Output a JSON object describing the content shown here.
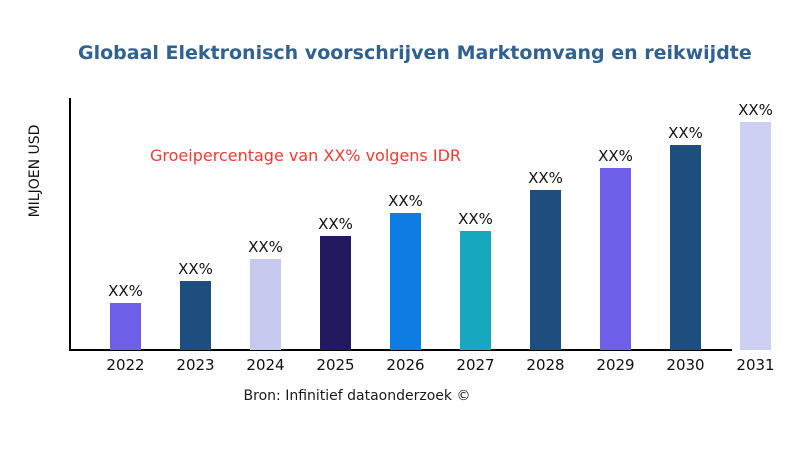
{
  "colors": {
    "background": "#ffffff",
    "title": "#30618f",
    "annotation": "#ee3b33",
    "axis_line": "#000000",
    "label_text": "#111111"
  },
  "chart_data": {
    "type": "bar",
    "title": "Globaal Elektronisch voorschrijven Marktomvang en reikwijdte",
    "ylabel": "MILJOEN USD",
    "xlabel": "",
    "categories": [
      "2022",
      "2023",
      "2024",
      "2025",
      "2026",
      "2027",
      "2028",
      "2029",
      "2030",
      "2031"
    ],
    "bar_labels": [
      "XX%",
      "XX%",
      "XX%",
      "XX%",
      "XX%",
      "XX%",
      "XX%",
      "XX%",
      "XX%",
      "XX%"
    ],
    "values_pct_of_max": [
      20.6,
      30.3,
      39.9,
      50.0,
      60.1,
      52.2,
      70.2,
      79.8,
      89.9,
      100.0
    ],
    "bar_colors": [
      "#6e5fe9",
      "#1e4e7e",
      "#c7c9ee",
      "#211a5e",
      "#0d7de4",
      "#17a8c0",
      "#1e4e7e",
      "#6e5fe9",
      "#1e4e7e",
      "#cdd0f3"
    ],
    "annotation": "Groeipercentage van XX% volgens IDR",
    "source": "Bron: Infinitief dataonderzoek ©",
    "y_axis_numeric_labels": "none",
    "grid": false,
    "legend": false
  }
}
